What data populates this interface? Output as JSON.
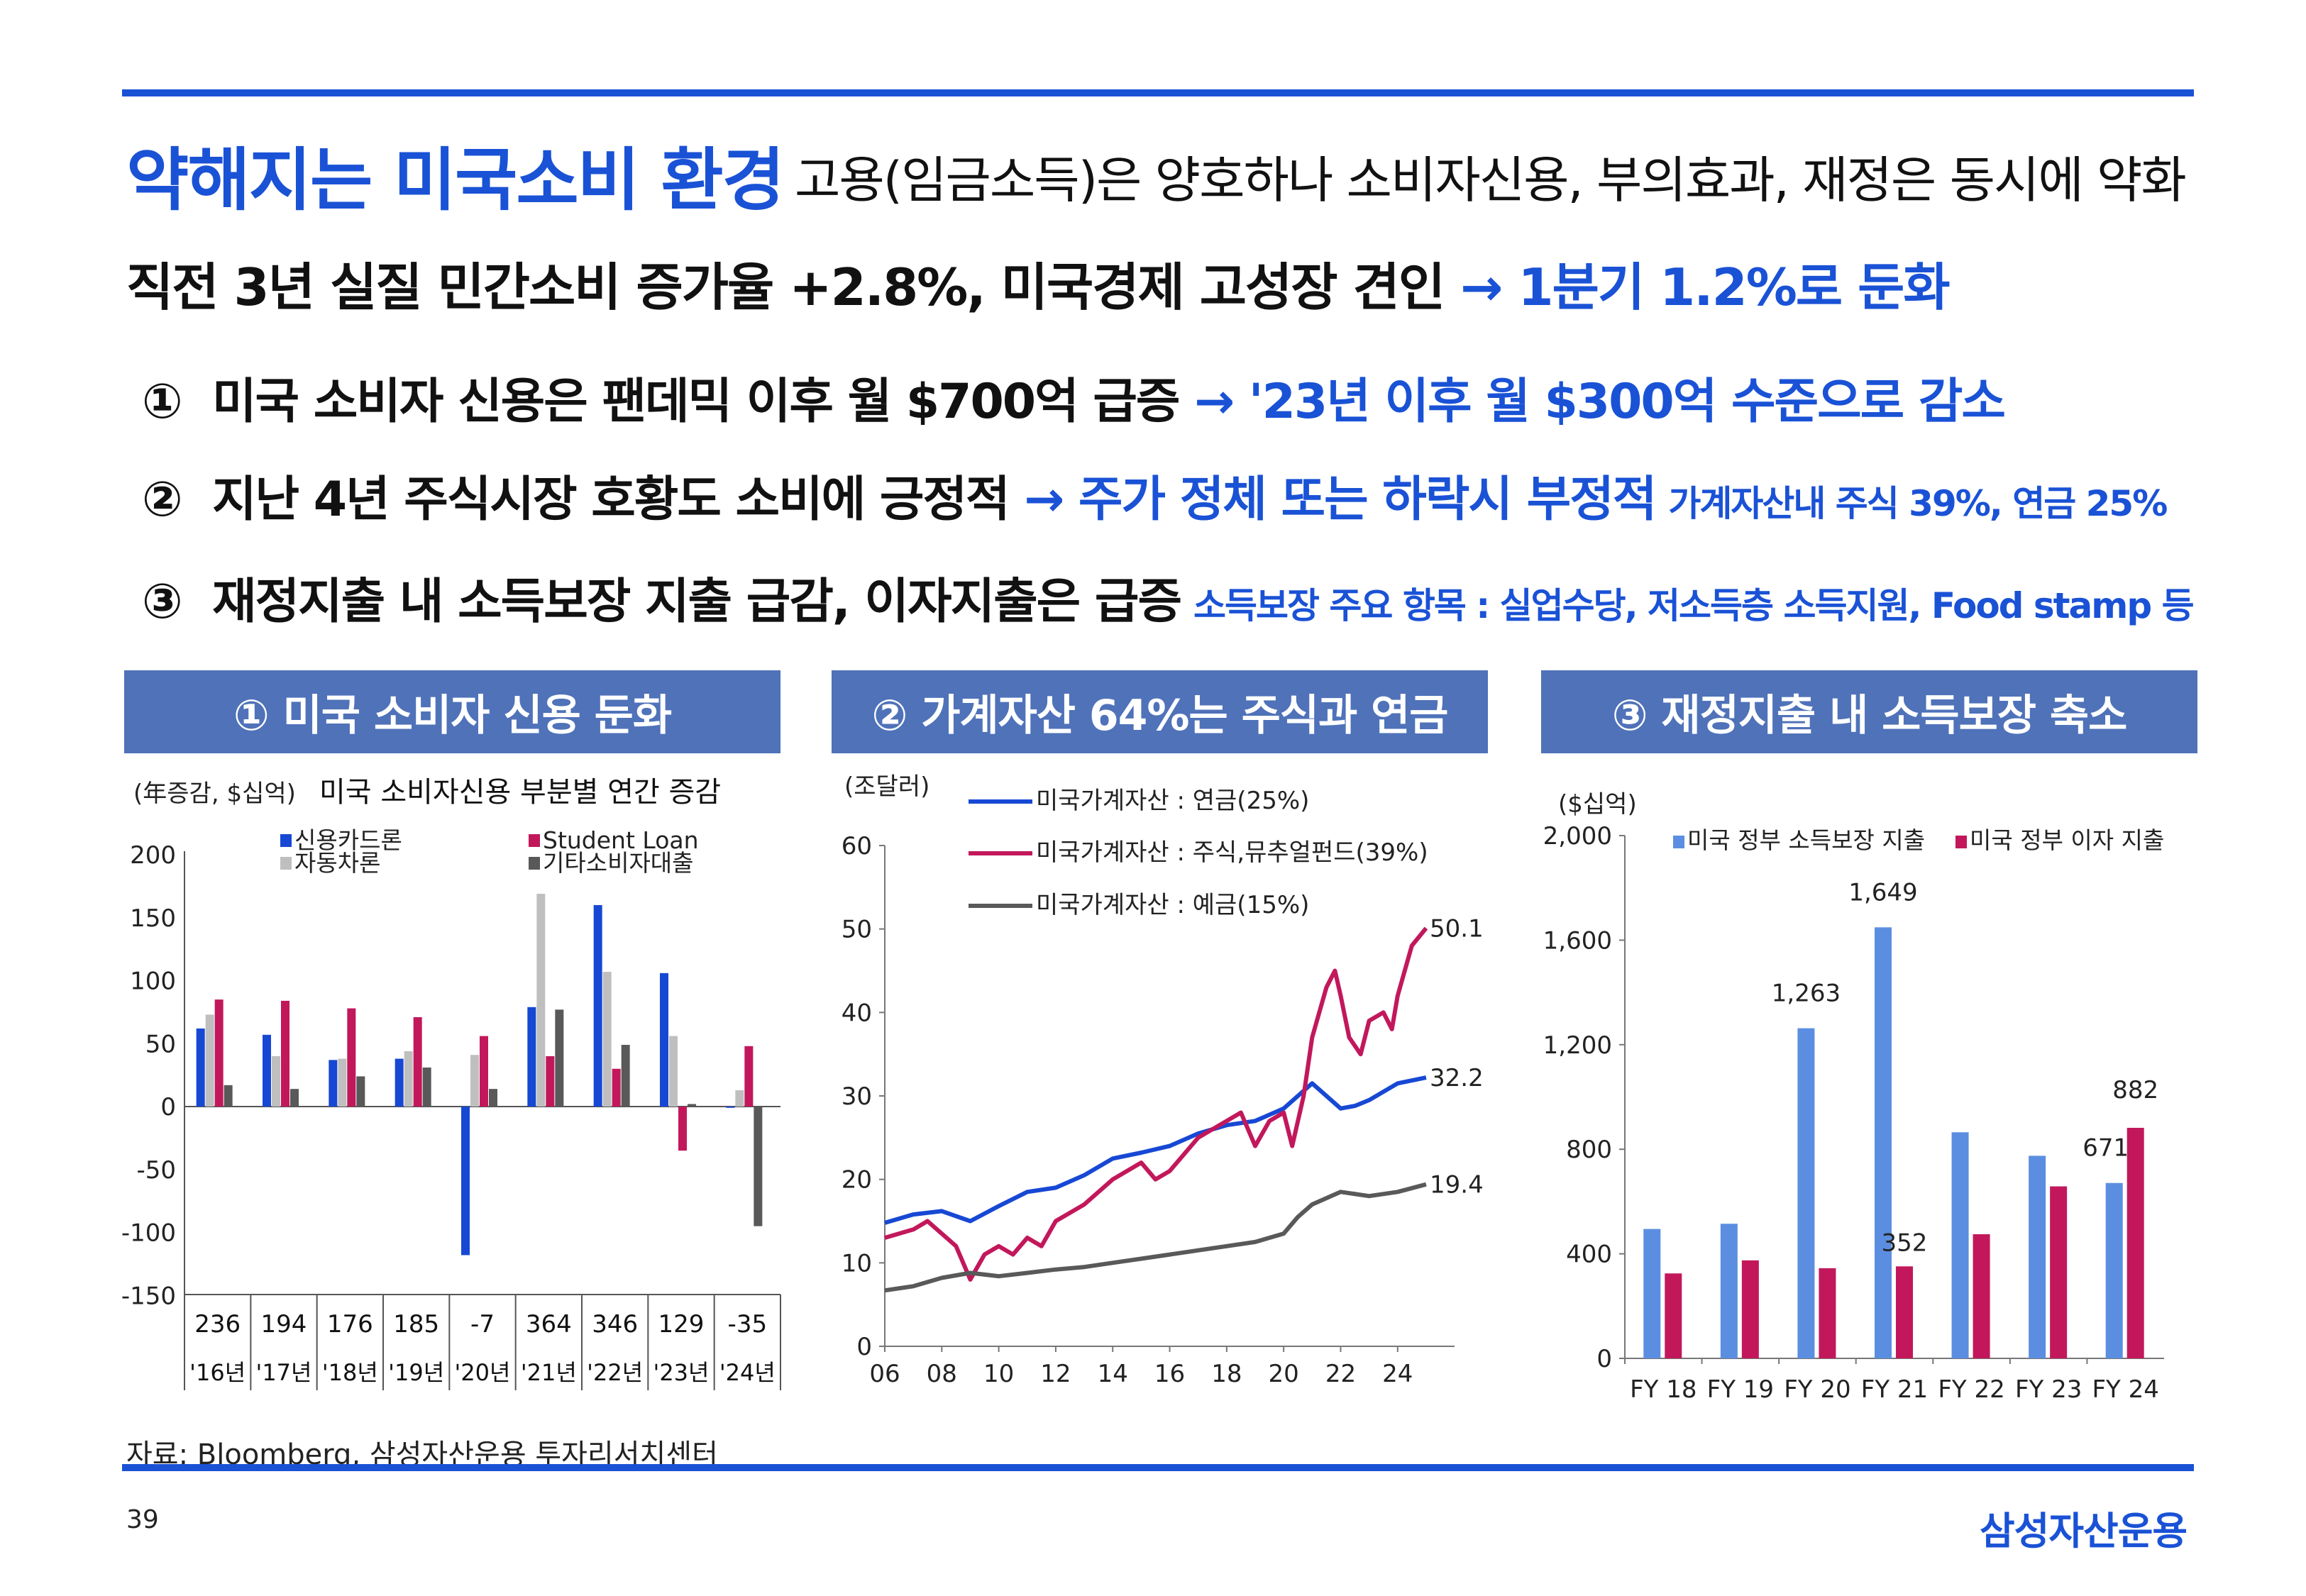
{
  "header": {
    "title": "약해지는 미국소비 환경",
    "subtitle": "고용(임금소득)은 양호하나 소비자신용, 부의효과, 재정은 동시에 약화",
    "headline_main": "직전 3년 실질 민간소비 증가율 +2.8%, 미국경제 고성장 견인 ",
    "headline_highlight": "→ 1분기 1.2%로 둔화"
  },
  "points": [
    {
      "num": "①",
      "main": "미국 소비자 신용은 팬데믹 이후 월 $700억 급증 ",
      "highlight": "→ '23년 이후 월 $300억 수준으로 감소",
      "note": ""
    },
    {
      "num": "②",
      "main": "지난 4년 주식시장 호황도 소비에 긍정적 ",
      "highlight": "→ 주가 정체 또는 하락시 부정적",
      "note": "가계자산내 주식 39%, 연금 25%"
    },
    {
      "num": "③",
      "main": "재정지출 내 소득보장 지출 급감, 이자지출은 급증",
      "highlight": "",
      "note": "소득보장 주요 항목 : 실업수당, 저소득층 소득지원, Food stamp 등"
    }
  ],
  "panels": [
    {
      "title": "① 미국 소비자 신용 둔화"
    },
    {
      "title": "② 가계자산 64%는 주식과 연금"
    },
    {
      "title": "③ 재정지출 내 소득보장 축소"
    }
  ],
  "footer": {
    "source": "자료: Bloomberg, 삼성자산운용 투자리서치센터",
    "page": "39",
    "brand": "삼성자산운용"
  },
  "colors": {
    "accent": "#1a52d6",
    "panel_header": "#4f72b9",
    "blue_series": "#1748d4",
    "grey_light": "#bfbfbf",
    "magenta": "#c2185b",
    "grey_dark": "#595959",
    "bar_blue": "#5b8ee0"
  },
  "chart_data": [
    {
      "type": "bar",
      "unit_label": "(年증감, $십억)",
      "title": "미국 소비자신용 부분별 연간 증감",
      "categories": [
        "'16년",
        "'17년",
        "'18년",
        "'19년",
        "'20년",
        "'21년",
        "'22년",
        "'23년",
        "'24년"
      ],
      "totals": [
        "236",
        "194",
        "176",
        "185",
        "-7",
        "364",
        "346",
        "129",
        "-35"
      ],
      "series": [
        {
          "name": "신용카드론",
          "color": "#1748d4",
          "values": [
            62,
            57,
            37,
            38,
            -118,
            79,
            160,
            106,
            -1
          ]
        },
        {
          "name": "자동차론",
          "color": "#bfbfbf",
          "values": [
            73,
            40,
            38,
            44,
            41,
            169,
            107,
            56,
            13
          ]
        },
        {
          "name": "Student Loan",
          "color": "#c2185b",
          "values": [
            85,
            84,
            78,
            71,
            56,
            40,
            30,
            -35,
            48
          ]
        },
        {
          "name": "기타소비자대출",
          "color": "#595959",
          "values": [
            17,
            14,
            24,
            31,
            14,
            77,
            49,
            2,
            -95
          ]
        }
      ],
      "ylim": [
        -150,
        200
      ],
      "yticks": [
        "200",
        "150",
        "100",
        "50",
        "0",
        "-50",
        "-100",
        "-150"
      ],
      "legend_position": "top"
    },
    {
      "type": "line",
      "unit_label": "(조달러)",
      "x_ticks": [
        "06",
        "08",
        "10",
        "12",
        "14",
        "16",
        "18",
        "20",
        "22",
        "24"
      ],
      "y_ticks": [
        "60",
        "50",
        "40",
        "30",
        "20",
        "10",
        "0"
      ],
      "ylim": [
        0,
        60
      ],
      "xlim": [
        2006,
        2025.5
      ],
      "series": [
        {
          "name": "미국가계자산 : 연금(25%)",
          "color": "#1748d4",
          "end_label": "50.1",
          "end_label_target": "주식",
          "x": [
            2006,
            2007,
            2008,
            2009,
            2010,
            2011,
            2012,
            2013,
            2014,
            2015,
            2016,
            2017,
            2018,
            2019,
            2020,
            2021,
            2022,
            2022.5,
            2023,
            2024,
            2025
          ],
          "y": [
            14.8,
            15.8,
            16.2,
            15.0,
            16.8,
            18.5,
            19.0,
            20.5,
            22.5,
            23.2,
            24.0,
            25.5,
            26.5,
            27.0,
            28.5,
            31.5,
            28.5,
            28.8,
            29.5,
            31.5,
            32.2
          ]
        },
        {
          "name": "미국가계자산 : 주식,뮤추얼펀드(39%)",
          "color": "#c2185b",
          "x": [
            2006,
            2007,
            2007.5,
            2008.5,
            2009,
            2009.5,
            2010,
            2010.5,
            2011,
            2011.5,
            2012,
            2013,
            2014,
            2015,
            2015.5,
            2016,
            2017,
            2018,
            2018.5,
            2019,
            2019.5,
            2020,
            2020.3,
            2020.7,
            2021,
            2021.5,
            2021.8,
            2022,
            2022.3,
            2022.7,
            2023,
            2023.5,
            2023.8,
            2024,
            2024.5,
            2025
          ],
          "y": [
            13,
            14,
            15,
            12,
            8,
            11,
            12,
            11,
            13,
            12,
            15,
            17,
            20,
            22,
            20,
            21,
            25,
            27,
            28,
            24,
            27,
            28,
            24,
            30,
            37,
            43,
            45,
            42,
            37,
            35,
            39,
            40,
            38,
            42,
            48,
            50.1
          ]
        },
        {
          "name": "미국가계자산 : 예금(15%)",
          "color": "#595959",
          "x": [
            2006,
            2007,
            2008,
            2009,
            2010,
            2011,
            2012,
            2013,
            2014,
            2015,
            2016,
            2017,
            2018,
            2019,
            2020,
            2020.5,
            2021,
            2022,
            2023,
            2024,
            2025
          ],
          "y": [
            6.7,
            7.2,
            8.2,
            8.8,
            8.4,
            8.8,
            9.2,
            9.5,
            10.0,
            10.5,
            11.0,
            11.5,
            12.0,
            12.5,
            13.5,
            15.5,
            17.0,
            18.5,
            18.0,
            18.5,
            19.4
          ]
        }
      ],
      "end_labels": [
        "50.1",
        "32.2",
        "19.4"
      ]
    },
    {
      "type": "bar",
      "unit_label": "($십억)",
      "categories": [
        "FY 18",
        "FY 19",
        "FY 20",
        "FY 21",
        "FY 22",
        "FY 23",
        "FY 24"
      ],
      "series": [
        {
          "name": "미국 정부 소득보장 지출",
          "color": "#5b8ee0",
          "values": [
            495,
            515,
            1263,
            1649,
            865,
            775,
            671
          ]
        },
        {
          "name": "미국 정부 이자 지출",
          "color": "#c2185b",
          "values": [
            325,
            375,
            345,
            352,
            475,
            658,
            882
          ]
        }
      ],
      "data_labels": [
        "1,263",
        "1,649",
        "352",
        "671",
        "882"
      ],
      "ylim": [
        0,
        2000
      ],
      "yticks": [
        "2,000",
        "1,600",
        "1,200",
        "800",
        "400",
        "0"
      ],
      "legend_position": "top"
    }
  ]
}
